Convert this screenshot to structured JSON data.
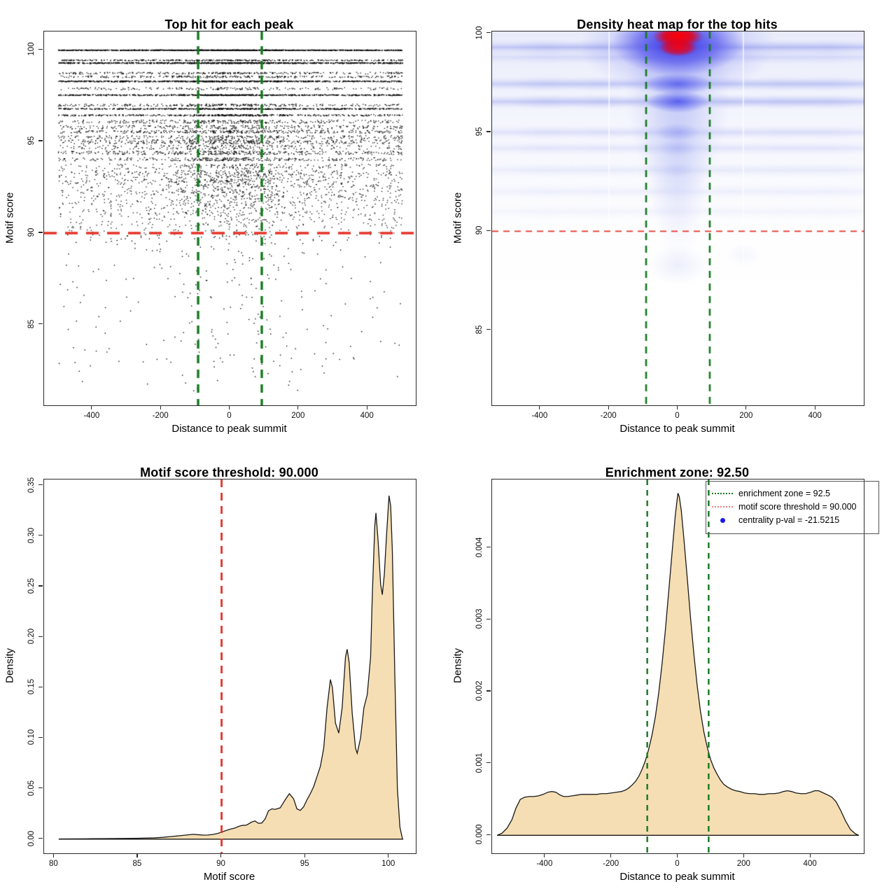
{
  "figure": {
    "background": "#ffffff",
    "panel_size": 640
  },
  "chart_data": [
    {
      "id": "top-hits-scatter",
      "type": "scatter",
      "title": "Top hit for each peak",
      "xlabel": "Distance to peak summit",
      "ylabel": "Motif score",
      "xlim": [
        -540,
        540
      ],
      "ylim": [
        80.6,
        101.0
      ],
      "xticks": [
        -400,
        -200,
        0,
        200,
        400
      ],
      "xtick_labels": [
        "-400",
        "-200",
        "0",
        "200",
        "400"
      ],
      "yticks": [
        85,
        90,
        95,
        100
      ],
      "ytick_labels": [
        "85",
        "90",
        "95",
        "100"
      ],
      "grid": false,
      "point_color": "#000000",
      "threshold_line": {
        "y": 90,
        "color": "#e63328",
        "dash": [
          18,
          12
        ],
        "width": 3.4
      },
      "zone_lines": {
        "x": [
          -92.5,
          92.5
        ],
        "color": "#14781e",
        "dash": [
          12,
          9
        ],
        "width": 3.4
      },
      "x_data_range": [
        -500,
        500
      ],
      "score_rows": [
        [
          100.0,
          1500,
          0.02,
          0.18
        ],
        [
          99.45,
          420,
          0.03,
          0.2
        ],
        [
          99.3,
          1050,
          0.03,
          0.2
        ],
        [
          98.75,
          300,
          0.05,
          0.2
        ],
        [
          98.55,
          280,
          0.05,
          0.2
        ],
        [
          98.3,
          900,
          0.03,
          0.2
        ],
        [
          97.9,
          200,
          0.06,
          0.2
        ],
        [
          97.55,
          800,
          0.03,
          0.2
        ],
        [
          97.0,
          300,
          0.06,
          0.22
        ],
        [
          96.8,
          700,
          0.03,
          0.2
        ],
        [
          96.45,
          520,
          0.04,
          0.22
        ],
        [
          96.1,
          300,
          0.09,
          0.25
        ],
        [
          95.8,
          280,
          0.1,
          0.25
        ],
        [
          95.55,
          360,
          0.08,
          0.25
        ],
        [
          95.25,
          270,
          0.1,
          0.28
        ],
        [
          95.0,
          400,
          0.12,
          0.28
        ],
        [
          94.7,
          240,
          0.12,
          0.28
        ],
        [
          94.4,
          380,
          0.1,
          0.28
        ],
        [
          94.05,
          320,
          0.09,
          0.3
        ],
        [
          93.65,
          210,
          0.15,
          0.3
        ],
        [
          93.3,
          250,
          0.15,
          0.3
        ],
        [
          93.0,
          220,
          0.16,
          0.3
        ],
        [
          92.7,
          200,
          0.16,
          0.3
        ],
        [
          92.4,
          165,
          0.16,
          0.32
        ],
        [
          92.1,
          160,
          0.16,
          0.32
        ],
        [
          91.8,
          145,
          0.16,
          0.32
        ],
        [
          91.5,
          125,
          0.16,
          0.32
        ],
        [
          91.2,
          110,
          0.16,
          0.32
        ],
        [
          90.9,
          90,
          0.16,
          0.3
        ],
        [
          90.6,
          72,
          0.15,
          0.3
        ],
        [
          90.35,
          52,
          0.12,
          0.3
        ],
        [
          90.1,
          38,
          0.1,
          0.3
        ]
      ],
      "below_cloud": {
        "count": 300,
        "score_min": 81.4,
        "score_max": 89.95,
        "center_frac": 0.32
      }
    },
    {
      "id": "density-heatmap",
      "type": "heatmap",
      "title": "Density heat map for the top hits",
      "xlabel": "Distance to peak summit",
      "ylabel": "Motif score",
      "xlim": [
        -540,
        540
      ],
      "ylim": [
        81.2,
        100.1
      ],
      "xticks": [
        -400,
        -200,
        0,
        200,
        400
      ],
      "xtick_labels": [
        "-400",
        "-200",
        "0",
        "200",
        "400"
      ],
      "yticks": [
        85,
        90,
        95,
        100
      ],
      "ytick_labels": [
        "85",
        "90",
        "95",
        "100"
      ],
      "palette": {
        "low": "#ffffff",
        "mid": "#3c3ce6",
        "high": "#ff0000"
      },
      "hot_center": {
        "x": 0,
        "y_top": 100.0,
        "y_core2": 99.3
      },
      "bands": [
        {
          "y": 99.3,
          "s": 0.95
        },
        {
          "y": 98.8,
          "s": 0.4
        },
        {
          "y": 97.45,
          "s": 0.8
        },
        {
          "y": 96.55,
          "s": 0.85
        },
        {
          "y": 95.0,
          "s": 0.4
        },
        {
          "y": 94.2,
          "s": 0.3
        },
        {
          "y": 93.1,
          "s": 0.24
        },
        {
          "y": 92.0,
          "s": 0.18
        },
        {
          "y": 91.0,
          "s": 0.13
        }
      ],
      "band_blobs_x": [
        -380,
        -230,
        -60,
        150,
        300,
        430
      ],
      "below_blob": {
        "x": 0,
        "y": 88.3
      },
      "white_gridlines_x": [
        -200,
        190
      ],
      "threshold_line": {
        "y": 90,
        "color": "#e63328",
        "dash": [
          9,
          7
        ],
        "width": 1.6
      },
      "zone_lines": {
        "x": [
          -92.5,
          92.5
        ],
        "color": "#14781e",
        "dash": [
          10,
          8
        ],
        "width": 2.6
      }
    },
    {
      "id": "motif-score-density",
      "type": "area",
      "title": "Motif score threshold: 90.000",
      "xlabel": "Motif score",
      "ylabel": "Density",
      "xlim": [
        79.4,
        101.6
      ],
      "ylim": [
        -0.014,
        0.356
      ],
      "xticks": [
        80,
        85,
        90,
        95,
        100
      ],
      "xtick_labels": [
        "80",
        "85",
        "90",
        "95",
        "100"
      ],
      "yticks": [
        0,
        0.05,
        0.1,
        0.15,
        0.2,
        0.25,
        0.3,
        0.35
      ],
      "ytick_labels": [
        "0.00",
        "0.05",
        "0.10",
        "0.15",
        "0.20",
        "0.25",
        "0.30",
        "0.35"
      ],
      "fill": "#F5DEB3",
      "stroke": "#1a1a1a",
      "vlines": [
        {
          "x": 90,
          "color": "#e63328",
          "dash": [
            11,
            8
          ],
          "width": 2.8
        }
      ],
      "curve": [
        [
          80.3,
          0.0002
        ],
        [
          81,
          0.0003
        ],
        [
          82,
          0.0004
        ],
        [
          83,
          0.0005
        ],
        [
          84,
          0.0007
        ],
        [
          85,
          0.0009
        ],
        [
          86,
          0.0013
        ],
        [
          86.5,
          0.0018
        ],
        [
          87,
          0.0026
        ],
        [
          87.5,
          0.0034
        ],
        [
          88,
          0.0043
        ],
        [
          88.3,
          0.0048
        ],
        [
          88.6,
          0.0044
        ],
        [
          88.9,
          0.004
        ],
        [
          89.2,
          0.0041
        ],
        [
          89.5,
          0.0047
        ],
        [
          89.8,
          0.0058
        ],
        [
          90,
          0.007
        ],
        [
          90.2,
          0.0082
        ],
        [
          90.5,
          0.0098
        ],
        [
          90.8,
          0.011
        ],
        [
          91,
          0.0125
        ],
        [
          91.2,
          0.0135
        ],
        [
          91.5,
          0.014
        ],
        [
          91.8,
          0.017
        ],
        [
          92,
          0.018
        ],
        [
          92.2,
          0.0157
        ],
        [
          92.4,
          0.016
        ],
        [
          92.6,
          0.02
        ],
        [
          92.8,
          0.028
        ],
        [
          93,
          0.03
        ],
        [
          93.2,
          0.0295
        ],
        [
          93.5,
          0.031
        ],
        [
          93.8,
          0.039
        ],
        [
          94.05,
          0.045
        ],
        [
          94.3,
          0.04
        ],
        [
          94.5,
          0.03
        ],
        [
          94.7,
          0.0285
        ],
        [
          94.9,
          0.032
        ],
        [
          95.1,
          0.039
        ],
        [
          95.3,
          0.045
        ],
        [
          95.5,
          0.052
        ],
        [
          95.7,
          0.062
        ],
        [
          95.9,
          0.072
        ],
        [
          96.1,
          0.09
        ],
        [
          96.3,
          0.13
        ],
        [
          96.5,
          0.158
        ],
        [
          96.62,
          0.15
        ],
        [
          96.8,
          0.115
        ],
        [
          97,
          0.105
        ],
        [
          97.2,
          0.13
        ],
        [
          97.4,
          0.18
        ],
        [
          97.5,
          0.188
        ],
        [
          97.62,
          0.175
        ],
        [
          97.8,
          0.125
        ],
        [
          98,
          0.09
        ],
        [
          98.1,
          0.085
        ],
        [
          98.3,
          0.1
        ],
        [
          98.5,
          0.13
        ],
        [
          98.7,
          0.143
        ],
        [
          98.9,
          0.18
        ],
        [
          99,
          0.24
        ],
        [
          99.15,
          0.31
        ],
        [
          99.22,
          0.323
        ],
        [
          99.35,
          0.295
        ],
        [
          99.5,
          0.252
        ],
        [
          99.6,
          0.242
        ],
        [
          99.72,
          0.262
        ],
        [
          99.85,
          0.3
        ],
        [
          100,
          0.34
        ],
        [
          100.1,
          0.33
        ],
        [
          100.2,
          0.285
        ],
        [
          100.35,
          0.16
        ],
        [
          100.5,
          0.05
        ],
        [
          100.65,
          0.012
        ],
        [
          100.78,
          0.002
        ],
        [
          100.82,
          0
        ]
      ]
    },
    {
      "id": "summit-distance-density",
      "type": "area",
      "title": "Enrichment zone: 92.50",
      "xlabel": "Distance to peak summit",
      "ylabel": "Density",
      "xlim": [
        -560,
        560
      ],
      "ylim": [
        -0.00025,
        0.00495
      ],
      "xticks": [
        -400,
        -200,
        0,
        200,
        400
      ],
      "xtick_labels": [
        "-400",
        "-200",
        "0",
        "200",
        "400"
      ],
      "yticks": [
        0,
        0.001,
        0.002,
        0.003,
        0.004
      ],
      "ytick_labels": [
        "0.000",
        "0.001",
        "0.002",
        "0.003",
        "0.004"
      ],
      "fill": "#F5DEB3",
      "stroke": "#1a1a1a",
      "zone_lines": {
        "x": [
          -92.5,
          92.5
        ],
        "color": "#14781e",
        "dash": [
          8,
          7
        ],
        "width": 2.4
      },
      "legend": {
        "position": "top-right",
        "entries": [
          {
            "swatch": "dotted-line",
            "color": "#14781e",
            "label": "enrichment zone = 92.5"
          },
          {
            "swatch": "dotted-line",
            "color": "#f08080",
            "label": "motif score threshold = 90.000"
          },
          {
            "swatch": "dot",
            "color": "#1a1aee",
            "label": "centrality p-val = -21.5215"
          }
        ]
      },
      "curve": [
        [
          -545,
          0
        ],
        [
          -530,
          3e-05
        ],
        [
          -515,
          0.0001
        ],
        [
          -500,
          0.00022
        ],
        [
          -488,
          0.00038
        ],
        [
          -475,
          0.0005
        ],
        [
          -462,
          0.00053
        ],
        [
          -448,
          0.00054
        ],
        [
          -434,
          0.00054
        ],
        [
          -420,
          0.00055
        ],
        [
          -406,
          0.00057
        ],
        [
          -392,
          0.0006
        ],
        [
          -380,
          0.00061
        ],
        [
          -368,
          0.0006
        ],
        [
          -355,
          0.00056
        ],
        [
          -344,
          0.00054
        ],
        [
          -332,
          0.00054
        ],
        [
          -318,
          0.00055
        ],
        [
          -304,
          0.00056
        ],
        [
          -290,
          0.00057
        ],
        [
          -275,
          0.00057
        ],
        [
          -260,
          0.00057
        ],
        [
          -245,
          0.00057
        ],
        [
          -230,
          0.00058
        ],
        [
          -215,
          0.00058
        ],
        [
          -200,
          0.00059
        ],
        [
          -185,
          0.0006
        ],
        [
          -170,
          0.00061
        ],
        [
          -158,
          0.00063
        ],
        [
          -148,
          0.00066
        ],
        [
          -138,
          0.0007
        ],
        [
          -128,
          0.00075
        ],
        [
          -118,
          0.00082
        ],
        [
          -108,
          0.00092
        ],
        [
          -98,
          0.00104
        ],
        [
          -88,
          0.0012
        ],
        [
          -78,
          0.0014
        ],
        [
          -68,
          0.00165
        ],
        [
          -58,
          0.00198
        ],
        [
          -48,
          0.00238
        ],
        [
          -38,
          0.00285
        ],
        [
          -28,
          0.00338
        ],
        [
          -18,
          0.00392
        ],
        [
          -8,
          0.00445
        ],
        [
          -3,
          0.00465
        ],
        [
          0,
          0.00476
        ],
        [
          4,
          0.00471
        ],
        [
          10,
          0.00452
        ],
        [
          18,
          0.00412
        ],
        [
          28,
          0.00358
        ],
        [
          38,
          0.00302
        ],
        [
          48,
          0.00252
        ],
        [
          58,
          0.00208
        ],
        [
          68,
          0.00172
        ],
        [
          78,
          0.00144
        ],
        [
          88,
          0.00123
        ],
        [
          98,
          0.00106
        ],
        [
          108,
          0.00094
        ],
        [
          118,
          0.00085
        ],
        [
          128,
          0.00077
        ],
        [
          138,
          0.00071
        ],
        [
          150,
          0.00067
        ],
        [
          162,
          0.00064
        ],
        [
          174,
          0.00062
        ],
        [
          186,
          0.00061
        ],
        [
          200,
          0.00059
        ],
        [
          215,
          0.00058
        ],
        [
          230,
          0.00058
        ],
        [
          245,
          0.00057
        ],
        [
          260,
          0.00057
        ],
        [
          275,
          0.00058
        ],
        [
          290,
          0.00058
        ],
        [
          305,
          0.00059
        ],
        [
          318,
          0.00061
        ],
        [
          330,
          0.00062
        ],
        [
          342,
          0.00061
        ],
        [
          355,
          0.00059
        ],
        [
          370,
          0.00058
        ],
        [
          385,
          0.00058
        ],
        [
          400,
          0.0006
        ],
        [
          412,
          0.00062
        ],
        [
          424,
          0.00062
        ],
        [
          438,
          0.00059
        ],
        [
          452,
          0.00056
        ],
        [
          464,
          0.00053
        ],
        [
          476,
          0.00047
        ],
        [
          490,
          0.00035
        ],
        [
          505,
          0.0002
        ],
        [
          520,
          8e-05
        ],
        [
          535,
          2e-05
        ],
        [
          545,
          0
        ]
      ]
    }
  ]
}
